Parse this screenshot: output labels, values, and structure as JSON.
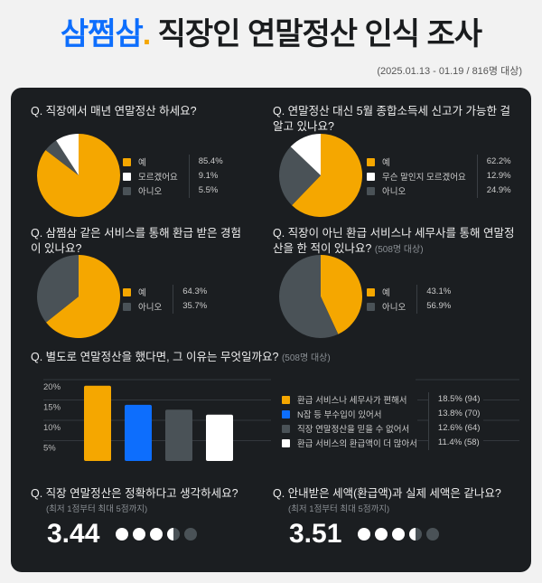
{
  "header": {
    "brand": "삼쩜삼",
    "brand_dot": ".",
    "title": "직장인 연말정산 인식 조사",
    "subtitle": "(2025.01.13 - 01.19 / 816명 대상)"
  },
  "colors": {
    "orange": "#f5a700",
    "white": "#ffffff",
    "gray": "#4a5257",
    "blue": "#0d6efd",
    "panel": "#1b1e21"
  },
  "chart_data": [
    {
      "type": "pie",
      "title": "Q.  직장에서 매년 연말정산 하세요?",
      "labels": [
        "예",
        "모르겠어요",
        "아니오"
      ],
      "values": [
        85.4,
        9.1,
        5.5
      ],
      "display": [
        "85.4%",
        "9.1%",
        "5.5%"
      ]
    },
    {
      "type": "pie",
      "title": "Q.  연말정산 대신 5월 종합소득세 신고가 가능한 걸 알고 있나요?",
      "labels": [
        "예",
        "무슨 말인지 모르겠어요",
        "아니오"
      ],
      "values": [
        62.2,
        12.9,
        24.9
      ],
      "display": [
        "62.2%",
        "12.9%",
        "24.9%"
      ]
    },
    {
      "type": "pie",
      "title": "Q. 삼쩜삼 같은 서비스를 통해 환급 받은 경험이 있나요?",
      "labels": [
        "예",
        "아니오"
      ],
      "values": [
        64.3,
        35.7
      ],
      "display": [
        "64.3%",
        "35.7%"
      ]
    },
    {
      "type": "pie",
      "title": "Q. 직장이 아닌 환급 서비스나 세무사를 통해 연말정산을 한 적이 있나요?",
      "note": "(508명 대상)",
      "labels": [
        "예",
        "아니오"
      ],
      "values": [
        43.1,
        56.9
      ],
      "display": [
        "43.1%",
        "56.9%"
      ]
    },
    {
      "type": "bar",
      "title": "Q. 별도로 연말정산을 했다면, 그 이유는 무엇일까요?",
      "note": "(508명 대상)",
      "categories": [
        "환급 서비스나 세무사가 편해서",
        "N잡 등 부수입이 있어서",
        "직장 연말정산을 믿을 수 없어서",
        "환급 서비스의 환급액이 더 많아서"
      ],
      "values": [
        18.5,
        13.8,
        12.6,
        11.4
      ],
      "counts": [
        94,
        70,
        64,
        58
      ],
      "display": [
        "18.5%  (94)",
        "13.8%  (70)",
        "12.6%  (64)",
        "11.4%  (58)"
      ],
      "yticks": [
        "20%",
        "15%",
        "10%",
        "5%"
      ],
      "ylim": [
        0,
        20
      ],
      "grid": true
    }
  ],
  "ratings": [
    {
      "question": "Q.  직장 연말정산은 정확하다고 생각하세요?",
      "hint": "(최저 1점부터 최대 5점까지)",
      "score": "3.44",
      "value": 3.44,
      "max": 5
    },
    {
      "question": "Q.  안내받은 세액(환급액)과 실제 세액은 같나요?",
      "hint": "(최저 1점부터 최대 5점까지)",
      "score": "3.51",
      "value": 3.51,
      "max": 5
    }
  ]
}
